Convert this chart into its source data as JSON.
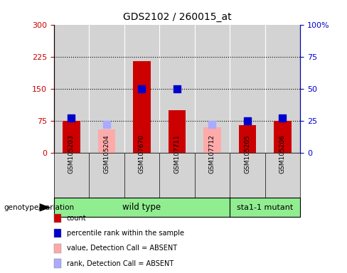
{
  "title": "GDS2102 / 260015_at",
  "samples": [
    "GSM105203",
    "GSM105204",
    "GSM107670",
    "GSM107711",
    "GSM107712",
    "GSM105205",
    "GSM105206"
  ],
  "counts": [
    75,
    null,
    215,
    100,
    null,
    65,
    75
  ],
  "absent_values": [
    null,
    55,
    null,
    null,
    60,
    null,
    null
  ],
  "percentile_ranks": [
    27,
    null,
    50,
    50,
    null,
    25,
    27
  ],
  "absent_ranks": [
    null,
    22,
    null,
    null,
    22,
    null,
    null
  ],
  "count_color": "#cc0000",
  "absent_value_color": "#ffaaaa",
  "rank_color": "#0000cc",
  "absent_rank_color": "#aaaaff",
  "ylim_left": [
    0,
    300
  ],
  "ylim_right": [
    0,
    100
  ],
  "yticks_left": [
    0,
    75,
    150,
    225,
    300
  ],
  "yticks_right": [
    0,
    25,
    50,
    75,
    100
  ],
  "ytick_labels_right": [
    "0",
    "25",
    "50",
    "75",
    "100%"
  ],
  "hlines": [
    75,
    150,
    225
  ],
  "n_wild": 5,
  "n_mutant": 2,
  "wild_type_label": "wild type",
  "mutant_label": "sta1-1 mutant",
  "genotype_label": "genotype/variation",
  "legend_items": [
    {
      "label": "count",
      "color": "#cc0000"
    },
    {
      "label": "percentile rank within the sample",
      "color": "#0000cc"
    },
    {
      "label": "value, Detection Call = ABSENT",
      "color": "#ffaaaa"
    },
    {
      "label": "rank, Detection Call = ABSENT",
      "color": "#aaaaff"
    }
  ],
  "bar_width": 0.5,
  "rank_marker_size": 7,
  "background_color": "#ffffff",
  "plot_bg_color": "#d3d3d3",
  "label_box_color": "#d3d3d3",
  "genotype_box_color": "#90ee90"
}
